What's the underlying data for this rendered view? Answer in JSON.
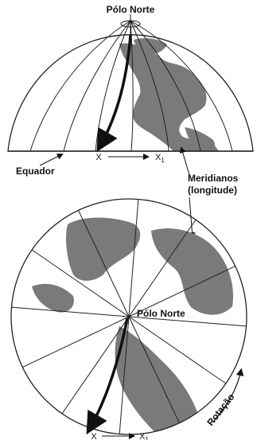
{
  "labels": {
    "north_pole_top": "Pólo Norte",
    "equator": "Equador",
    "meridians_line1": "Meridianos",
    "meridians_line2": "(longitude)",
    "x_top": "X",
    "x1_top": "X",
    "x1_top_sub": "1",
    "north_pole_bottom": "Pólo Norte",
    "rotation": "Rotação",
    "x_bottom": "X",
    "x1_bottom": "X",
    "x1_bottom_sub": "1"
  },
  "colors": {
    "land": "#7a7a7a",
    "line": "#222222",
    "arrow": "#111111"
  }
}
